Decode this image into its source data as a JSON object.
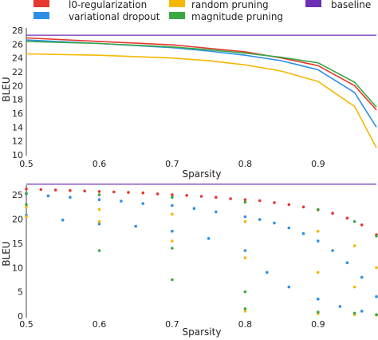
{
  "chart_data": [
    {
      "type": "line",
      "xlabel": "Sparsity",
      "ylabel": "BLEU",
      "xlim": [
        0.5,
        0.98
      ],
      "ylim": [
        10,
        28
      ],
      "xticks": [
        "0.5",
        "0.6",
        "0.7",
        "0.8",
        "0.9"
      ],
      "yticks": [
        "10",
        "12",
        "14",
        "16",
        "18",
        "20",
        "22",
        "24",
        "26",
        "28"
      ],
      "grid": false,
      "legend": {
        "placement": "top",
        "entries": [
          {
            "label": "l0-regularization",
            "color": "#e8372f"
          },
          {
            "label": "variational dropout",
            "color": "#2d8fe6"
          },
          {
            "label": "random pruning",
            "color": "#f5b700"
          },
          {
            "label": "magnitude pruning",
            "color": "#3aa845"
          },
          {
            "label": "baseline",
            "color": "#6c2fb5"
          }
        ]
      },
      "series": [
        {
          "name": "l0-regularization",
          "color": "#e8372f",
          "x": [
            0.5,
            0.6,
            0.7,
            0.75,
            0.8,
            0.85,
            0.9,
            0.95,
            0.98
          ],
          "y": [
            26.9,
            26.4,
            25.9,
            25.4,
            24.9,
            24.0,
            22.9,
            20.0,
            16.5
          ]
        },
        {
          "name": "variational dropout",
          "color": "#2d8fe6",
          "x": [
            0.5,
            0.6,
            0.7,
            0.75,
            0.8,
            0.85,
            0.9,
            0.95,
            0.98
          ],
          "y": [
            26.6,
            26.1,
            25.5,
            25.0,
            24.4,
            23.6,
            22.3,
            19.0,
            14.0
          ]
        },
        {
          "name": "random pruning",
          "color": "#f5b700",
          "x": [
            0.5,
            0.6,
            0.7,
            0.75,
            0.8,
            0.85,
            0.9,
            0.95,
            0.98
          ],
          "y": [
            24.6,
            24.4,
            24.0,
            23.6,
            23.0,
            22.1,
            20.6,
            17.0,
            11.0
          ]
        },
        {
          "name": "magnitude pruning",
          "color": "#3aa845",
          "x": [
            0.5,
            0.6,
            0.7,
            0.75,
            0.8,
            0.85,
            0.9,
            0.95,
            0.98
          ],
          "y": [
            26.4,
            26.1,
            25.6,
            25.2,
            24.7,
            24.1,
            23.3,
            20.5,
            16.9
          ]
        },
        {
          "name": "baseline",
          "color": "#6c2fb5",
          "x": [
            0.5,
            0.98
          ],
          "y": [
            27.3,
            27.3
          ]
        }
      ]
    },
    {
      "type": "scatter",
      "xlabel": "Sparsity",
      "ylabel": "BLEU",
      "xlim": [
        0.5,
        0.98
      ],
      "ylim": [
        0,
        27
      ],
      "xticks": [
        "0.5",
        "0.6",
        "0.7",
        "0.8",
        "0.9"
      ],
      "yticks": [
        "0",
        "5",
        "10",
        "15",
        "20",
        "25"
      ],
      "grid": false,
      "series": [
        {
          "name": "baseline",
          "color": "#6c2fb5",
          "x": [
            0.5,
            0.98
          ],
          "y": [
            27.2,
            27.2
          ]
        },
        {
          "name": "l0-regularization",
          "color": "#e8372f",
          "x": [
            0.5,
            0.52,
            0.54,
            0.56,
            0.58,
            0.6,
            0.62,
            0.64,
            0.66,
            0.68,
            0.7,
            0.72,
            0.74,
            0.76,
            0.78,
            0.8,
            0.82,
            0.84,
            0.86,
            0.88,
            0.9,
            0.92,
            0.94,
            0.96,
            0.98
          ],
          "y": [
            26.2,
            26.1,
            26.0,
            25.9,
            25.8,
            25.7,
            25.6,
            25.5,
            25.4,
            25.2,
            25.0,
            24.9,
            24.7,
            24.5,
            24.2,
            24.0,
            23.8,
            23.4,
            23.0,
            22.5,
            21.9,
            21.2,
            20.2,
            18.8,
            16.8
          ]
        },
        {
          "name": "variational dropout",
          "color": "#2d8fe6",
          "x": [
            0.5,
            0.53,
            0.56,
            0.6,
            0.63,
            0.66,
            0.7,
            0.73,
            0.76,
            0.8,
            0.82,
            0.84,
            0.86,
            0.88,
            0.9,
            0.92,
            0.94,
            0.96,
            0.98
          ],
          "y": [
            25.2,
            24.8,
            24.5,
            24.0,
            23.7,
            23.2,
            22.8,
            22.2,
            21.5,
            20.5,
            19.9,
            19.2,
            18.2,
            17.0,
            15.5,
            13.5,
            11.0,
            8.0,
            4.0
          ]
        },
        {
          "name": "variational dropout (lower band)",
          "color": "#2d8fe6",
          "x": [
            0.5,
            0.55,
            0.6,
            0.65,
            0.7,
            0.75,
            0.8,
            0.83,
            0.86,
            0.9,
            0.93,
            0.96
          ],
          "y": [
            20.8,
            19.8,
            19.0,
            18.5,
            17.5,
            16.0,
            13.5,
            9.0,
            6.0,
            3.5,
            2.0,
            1.0
          ]
        },
        {
          "name": "random pruning",
          "color": "#f5b700",
          "x": [
            0.5,
            0.5,
            0.6,
            0.6,
            0.7,
            0.7,
            0.8,
            0.8,
            0.8,
            0.9,
            0.9,
            0.9,
            0.95,
            0.95,
            0.95,
            0.98,
            0.98
          ],
          "y": [
            22.5,
            20.5,
            22.0,
            19.5,
            21.0,
            15.5,
            19.5,
            12.0,
            1.0,
            17.5,
            9.0,
            0.5,
            14.5,
            6.0,
            0.3,
            10.0,
            0.2
          ]
        },
        {
          "name": "magnitude pruning",
          "color": "#3aa845",
          "x": [
            0.5,
            0.5,
            0.6,
            0.6,
            0.7,
            0.7,
            0.7,
            0.8,
            0.8,
            0.8,
            0.9,
            0.9,
            0.95,
            0.95,
            0.98,
            0.98
          ],
          "y": [
            25.3,
            23.0,
            25.0,
            13.5,
            24.5,
            14.0,
            7.5,
            23.5,
            5.0,
            1.5,
            22.0,
            0.8,
            19.5,
            0.6,
            16.5,
            0.3
          ]
        }
      ]
    }
  ]
}
